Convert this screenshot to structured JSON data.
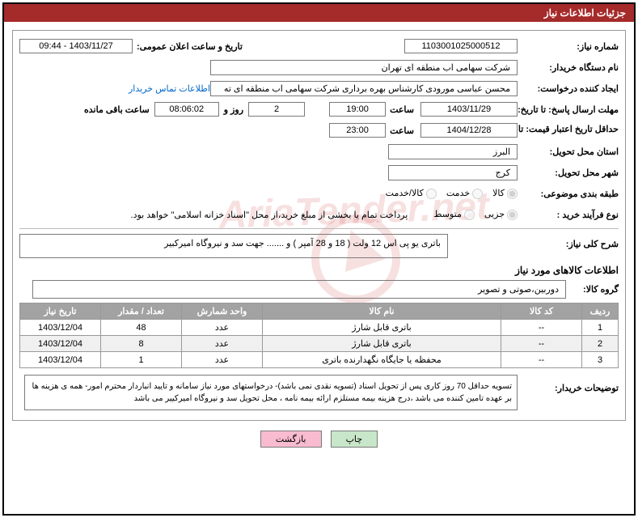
{
  "header": {
    "title": "جزئیات اطلاعات نیاز"
  },
  "fields": {
    "need_no_label": "شماره نیاز:",
    "need_no": "1103001025000512",
    "announce_label": "تاریخ و ساعت اعلان عمومی:",
    "announce": "1403/11/27 - 09:44",
    "buyer_label": "نام دستگاه خریدار:",
    "buyer": "شرکت سهامی اب منطقه ای تهران",
    "requester_label": "ایجاد کننده درخواست:",
    "requester": "محسن عباسی مورودی کارشناس بهره برداری شرکت سهامی اب منطقه ای ته",
    "contact_link": "اطلاعات تماس خریدار",
    "resp_deadline_label": "مهلت ارسال پاسخ: تا تاریخ:",
    "resp_date": "1403/11/29",
    "time_label": "ساعت",
    "resp_time": "19:00",
    "days": "2",
    "days_label": "روز و",
    "remain_time": "08:06:02",
    "remain_label": "ساعت باقی مانده",
    "price_valid_label": "حداقل تاریخ اعتبار قیمت: تا تاریخ:",
    "price_date": "1404/12/28",
    "price_time": "23:00",
    "province_label": "استان محل تحویل:",
    "province": "البرز",
    "city_label": "شهر محل تحویل:",
    "city": "کرج",
    "category_label": "طبقه بندی موضوعی:",
    "cat1": "کالا",
    "cat2": "خدمت",
    "cat3": "کالا/خدمت",
    "process_label": "نوع فرآیند خرید :",
    "proc1": "جزیی",
    "proc2": "متوسط",
    "process_note": "پرداخت تمام یا بخشی از مبلغ خرید،از محل \"اسناد خزانه اسلامی\" خواهد بود.",
    "desc_title": "شرح کلی نیاز:",
    "desc": "باتری یو پی اس 12 ولت ( 18 و  28 آمپر ) و ....... جهت سد و نیروگاه امیرکبیر",
    "goods_title": "اطلاعات کالاهای مورد نیاز",
    "group_label": "گروه کالا:",
    "group": "دوربین،صوتی و تصویر",
    "buyer_notes_label": "توضیحات خریدار:",
    "buyer_notes": "تسویه حداقل 70 روز کاری پس از تحویل اسناد (تسویه نقدی نمی باشد)- درخواستهای مورد نیاز سامانه و تایید انباردار محترم امور- همه ی هزینه ها بر عهده تامین کننده می باشد ،درج هزینه بیمه مستلزم ارائه بیمه نامه ، محل تحویل سد و نیروگاه امیرکییر می باشد"
  },
  "table": {
    "headers": {
      "row": "ردیف",
      "code": "کد کالا",
      "name": "نام کالا",
      "unit": "واحد شمارش",
      "qty": "تعداد / مقدار",
      "date": "تاریخ نیاز"
    },
    "rows": [
      {
        "n": "1",
        "code": "--",
        "name": "باتری قابل شارژ",
        "unit": "عدد",
        "qty": "48",
        "date": "1403/12/04"
      },
      {
        "n": "2",
        "code": "--",
        "name": "باتری قابل شارژ",
        "unit": "عدد",
        "qty": "8",
        "date": "1403/12/04"
      },
      {
        "n": "3",
        "code": "--",
        "name": "محفظه یا جایگاه نگهدارنده باتری",
        "unit": "عدد",
        "qty": "1",
        "date": "1403/12/04"
      }
    ]
  },
  "buttons": {
    "print": "چاپ",
    "back": "بازگشت"
  },
  "style": {
    "header_bg": "#a52a2a",
    "border_color": "#000000",
    "th_bg": "#a2a2a2"
  }
}
